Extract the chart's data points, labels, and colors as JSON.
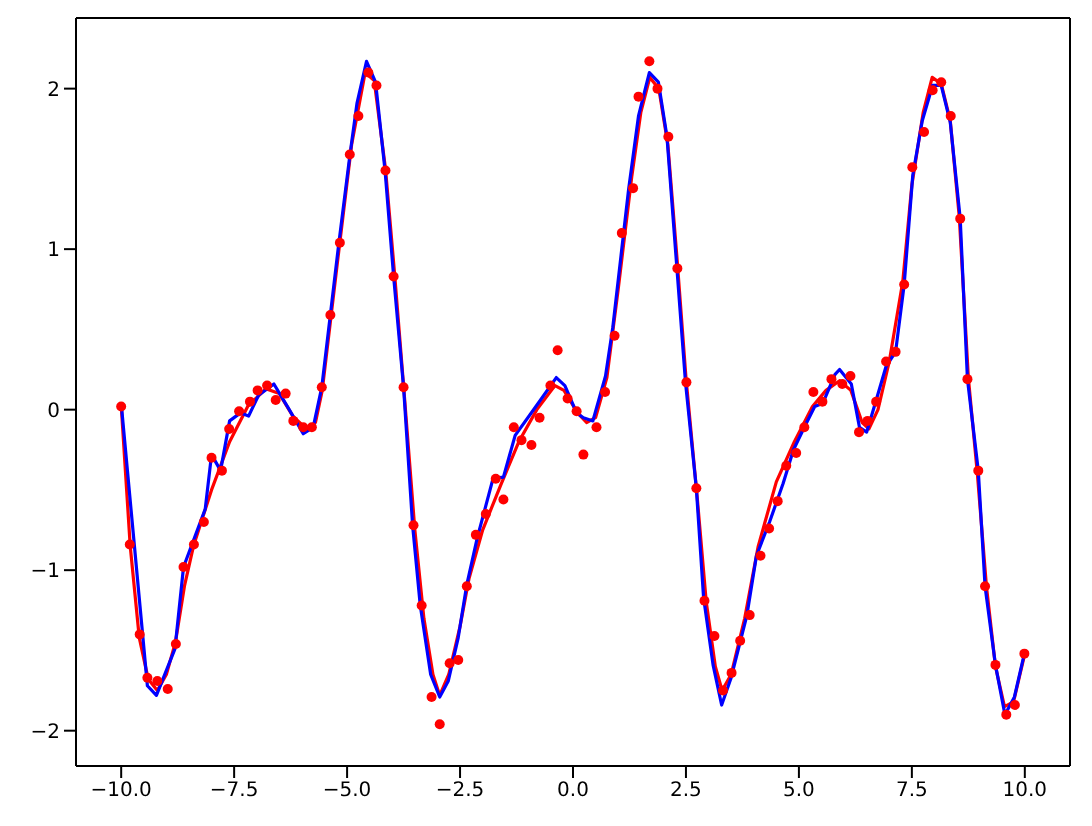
{
  "chart_data": {
    "type": "scatter",
    "xlim": [
      -11,
      11
    ],
    "ylim": [
      -2.22,
      2.44
    ],
    "xticks": [
      {
        "value": -10,
        "label": "−10.0"
      },
      {
        "value": -7.5,
        "label": "−7.5"
      },
      {
        "value": -5,
        "label": "−5.0"
      },
      {
        "value": -2.5,
        "label": "−2.5"
      },
      {
        "value": 0,
        "label": "0.0"
      },
      {
        "value": 2.5,
        "label": "2.5"
      },
      {
        "value": 5,
        "label": "5.0"
      },
      {
        "value": 7.5,
        "label": "7.5"
      },
      {
        "value": 10,
        "label": "10.0"
      }
    ],
    "yticks": [
      {
        "value": -2,
        "label": "−2"
      },
      {
        "value": -1,
        "label": "−1"
      },
      0,
      1,
      2
    ],
    "grid": false,
    "legend": false,
    "series": [
      {
        "marker": "circle",
        "color": "#ff0000",
        "x": [
          -10.0,
          -9.81,
          -9.59,
          -9.42,
          -9.2,
          -8.97,
          -8.79,
          -8.62,
          -8.39,
          -8.17,
          -8.0,
          -7.77,
          -7.61,
          -7.39,
          -7.15,
          -6.98,
          -6.77,
          -6.58,
          -6.36,
          -6.19,
          -5.97,
          -5.78,
          -5.56,
          -5.37,
          -5.16,
          -4.94,
          -4.75,
          -4.53,
          -4.35,
          -4.15,
          -3.97,
          -3.75,
          -3.53,
          -3.35,
          -3.13,
          -2.95,
          -2.73,
          -2.54,
          -2.35,
          -2.15,
          -1.93,
          -1.71,
          -1.54,
          -1.31,
          -1.14,
          -0.92,
          -0.74,
          -0.5,
          -0.34,
          -0.12,
          0.08,
          0.23,
          0.52,
          0.71,
          0.92,
          1.08,
          1.33,
          1.45,
          1.69,
          1.87,
          2.11,
          2.31,
          2.51,
          2.73,
          2.91,
          3.13,
          3.32,
          3.51,
          3.7,
          3.91,
          4.15,
          4.34,
          4.53,
          4.72,
          4.94,
          5.12,
          5.32,
          5.52,
          5.72,
          5.96,
          6.14,
          6.33,
          6.52,
          6.71,
          6.93,
          7.14,
          7.33,
          7.51,
          7.77,
          7.96,
          8.15,
          8.36,
          8.57,
          8.73,
          8.97,
          9.12,
          9.35,
          9.59,
          9.78,
          9.99
        ],
        "values": [
          0.02,
          -0.84,
          -1.4,
          -1.67,
          -1.69,
          -1.74,
          -1.46,
          -0.98,
          -0.84,
          -0.7,
          -0.3,
          -0.38,
          -0.12,
          -0.01,
          0.05,
          0.12,
          0.15,
          0.06,
          0.1,
          -0.07,
          -0.11,
          -0.11,
          0.14,
          0.59,
          1.04,
          1.59,
          1.83,
          2.1,
          2.02,
          1.49,
          0.83,
          0.14,
          -0.72,
          -1.22,
          -1.79,
          -1.96,
          -1.58,
          -1.56,
          -1.1,
          -0.78,
          -0.65,
          -0.43,
          -0.56,
          -0.11,
          -0.19,
          -0.22,
          -0.05,
          0.15,
          0.37,
          0.07,
          -0.01,
          -0.28,
          -0.11,
          0.11,
          0.46,
          1.1,
          1.38,
          1.95,
          2.17,
          2.0,
          1.7,
          0.88,
          0.17,
          -0.49,
          -1.19,
          -1.41,
          -1.75,
          -1.64,
          -1.44,
          -1.28,
          -0.91,
          -0.74,
          -0.57,
          -0.35,
          -0.27,
          -0.11,
          0.11,
          0.05,
          0.19,
          0.16,
          0.21,
          -0.14,
          -0.07,
          0.05,
          0.3,
          0.36,
          0.78,
          1.51,
          1.73,
          1.99,
          2.04,
          1.83,
          1.19,
          0.19,
          -0.38,
          -1.1,
          -1.59,
          -1.9,
          -1.84,
          -1.52
        ]
      },
      {
        "type": "line",
        "marker": "none",
        "color": "#ff0000",
        "x": [
          -10,
          -9.8,
          -9.6,
          -9.4,
          -9.2,
          -9.0,
          -8.8,
          -8.6,
          -8.4,
          -8.0,
          -7.6,
          -7.2,
          -6.8,
          -6.5,
          -6.2,
          -5.9,
          -5.7,
          -5.55,
          -5.2,
          -4.9,
          -4.6,
          -4.4,
          -4.15,
          -3.95,
          -3.75,
          -3.5,
          -3.3,
          -3.1,
          -2.95,
          -2.75,
          -2.5,
          -2.3,
          -2.0,
          -1.6,
          -1.2,
          -0.8,
          -0.4,
          -0.2,
          0.1,
          0.3,
          0.5,
          0.75,
          1.0,
          1.3,
          1.5,
          1.7,
          1.9,
          2.1,
          2.3,
          2.5,
          2.75,
          2.95,
          3.15,
          3.3,
          3.5,
          3.8,
          4.1,
          4.5,
          4.9,
          5.3,
          5.6,
          5.9,
          6.15,
          6.4,
          6.55,
          6.75,
          7.0,
          7.3,
          7.5,
          7.75,
          7.95,
          8.15,
          8.35,
          8.55,
          8.75,
          8.95,
          9.15,
          9.35,
          9.55,
          9.75,
          10.0
        ],
        "values": [
          0.03,
          -0.85,
          -1.42,
          -1.68,
          -1.75,
          -1.65,
          -1.45,
          -1.1,
          -0.85,
          -0.5,
          -0.2,
          0.02,
          0.13,
          0.1,
          -0.04,
          -0.12,
          -0.08,
          0.12,
          0.95,
          1.65,
          2.1,
          2.05,
          1.5,
          0.85,
          0.15,
          -0.75,
          -1.3,
          -1.65,
          -1.78,
          -1.65,
          -1.35,
          -1.05,
          -0.75,
          -0.47,
          -0.2,
          0.0,
          0.15,
          0.12,
          -0.02,
          -0.08,
          -0.05,
          0.2,
          0.75,
          1.45,
          1.85,
          2.07,
          2.0,
          1.65,
          0.95,
          0.2,
          -0.55,
          -1.2,
          -1.6,
          -1.75,
          -1.65,
          -1.3,
          -0.85,
          -0.45,
          -0.2,
          0.02,
          0.12,
          0.18,
          0.12,
          -0.08,
          -0.12,
          0.0,
          0.3,
          0.8,
          1.4,
          1.85,
          2.07,
          2.03,
          1.8,
          1.2,
          0.2,
          -0.4,
          -1.1,
          -1.6,
          -1.85,
          -1.82,
          -1.52
        ]
      },
      {
        "type": "line",
        "marker": "none",
        "color": "#0000ff",
        "x": [
          -10,
          -9.42,
          -9.22,
          -8.81,
          -8.62,
          -8.14,
          -8.0,
          -7.8,
          -7.6,
          -7.36,
          -7.18,
          -6.96,
          -6.62,
          -6.3,
          -5.97,
          -5.75,
          -5.56,
          -5.19,
          -4.94,
          -4.78,
          -4.57,
          -4.37,
          -4.16,
          -3.97,
          -3.75,
          -3.55,
          -3.38,
          -3.15,
          -2.95,
          -2.76,
          -2.54,
          -2.35,
          -2.12,
          -1.77,
          -1.54,
          -1.28,
          -0.77,
          -0.37,
          -0.18,
          0.08,
          0.23,
          0.44,
          0.72,
          0.88,
          1.23,
          1.45,
          1.69,
          1.89,
          2.08,
          2.3,
          2.49,
          2.73,
          2.89,
          3.1,
          3.29,
          3.5,
          3.85,
          4.06,
          4.35,
          4.65,
          4.88,
          5.12,
          5.35,
          5.53,
          5.8,
          5.9,
          6.16,
          6.34,
          6.5,
          6.69,
          6.93,
          7.14,
          7.33,
          7.52,
          7.73,
          7.96,
          8.15,
          8.35,
          8.57,
          8.73,
          8.97,
          9.12,
          9.35,
          9.56,
          9.77,
          9.99
        ],
        "values": [
          0.04,
          -1.72,
          -1.78,
          -1.49,
          -0.98,
          -0.62,
          -0.28,
          -0.38,
          -0.07,
          -0.02,
          -0.04,
          0.09,
          0.16,
          0.01,
          -0.15,
          -0.11,
          0.14,
          1.02,
          1.58,
          1.91,
          2.17,
          2.04,
          1.49,
          0.83,
          0.14,
          -0.72,
          -1.22,
          -1.65,
          -1.79,
          -1.69,
          -1.42,
          -1.09,
          -0.8,
          -0.43,
          -0.42,
          -0.16,
          0.04,
          0.2,
          0.15,
          -0.02,
          -0.05,
          -0.07,
          0.21,
          0.51,
          1.37,
          1.83,
          2.1,
          2.04,
          1.7,
          0.88,
          0.17,
          -0.49,
          -1.17,
          -1.59,
          -1.84,
          -1.67,
          -1.28,
          -0.91,
          -0.7,
          -0.46,
          -0.25,
          -0.11,
          0.02,
          0.04,
          0.22,
          0.25,
          0.16,
          -0.11,
          -0.14,
          0.04,
          0.27,
          0.36,
          0.78,
          1.46,
          1.8,
          2.02,
          2.02,
          1.79,
          1.19,
          0.19,
          -0.38,
          -1.1,
          -1.59,
          -1.9,
          -1.79,
          -1.52
        ]
      }
    ]
  }
}
